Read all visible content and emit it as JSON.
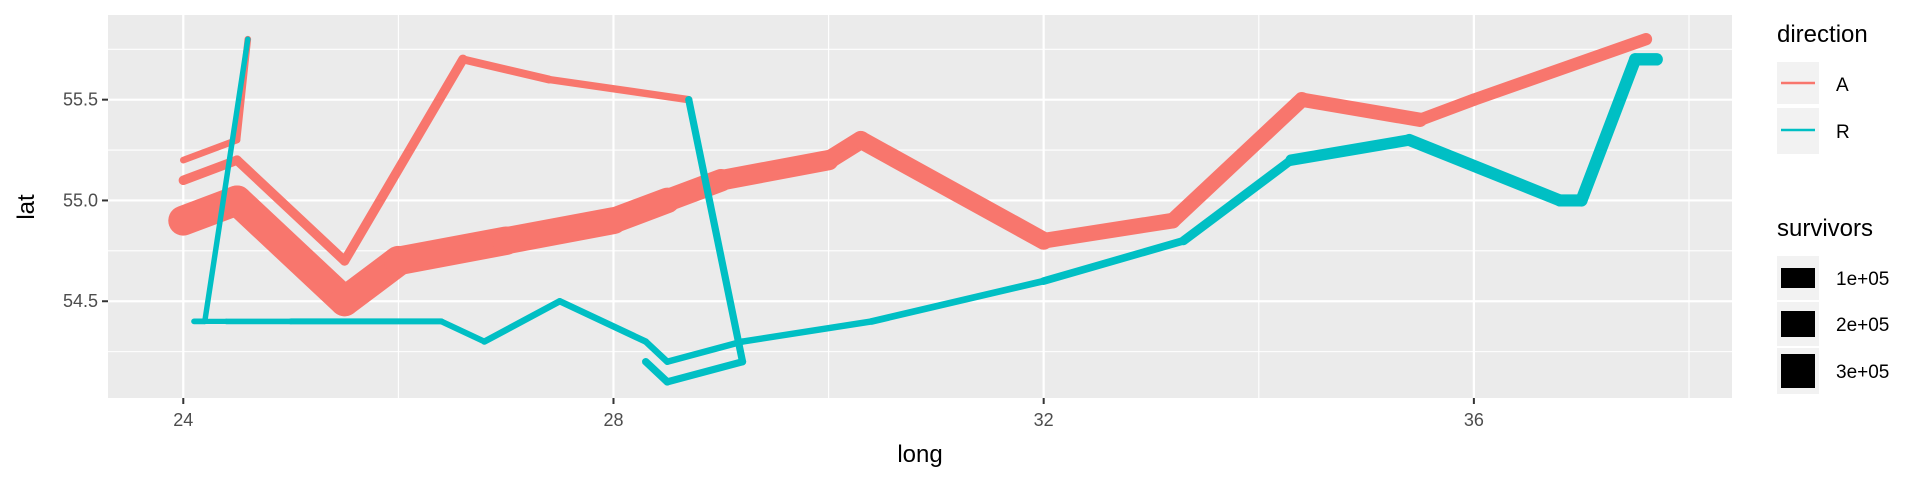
{
  "chart_data": {
    "type": "line",
    "xlabel": "long",
    "ylabel": "lat",
    "xlim": [
      23.3,
      38.4
    ],
    "ylim": [
      54.02,
      55.92
    ],
    "x_ticks": [
      24,
      28,
      32,
      36
    ],
    "x_tick_labels": [
      "24",
      "28",
      "32",
      "36"
    ],
    "y_ticks": [
      54.5,
      55.0,
      55.5
    ],
    "y_tick_labels": [
      "54.5",
      "55.0",
      "55.5"
    ],
    "grid": true,
    "legend_position": "right",
    "legends": {
      "direction": {
        "title": "direction",
        "entries": [
          {
            "label": "A",
            "color": "#F8766D"
          },
          {
            "label": "R",
            "color": "#00BFC4"
          }
        ]
      },
      "survivors": {
        "title": "survivors",
        "entries": [
          {
            "label": "1e+05",
            "value": 100000
          },
          {
            "label": "2e+05",
            "value": 200000
          },
          {
            "label": "3e+05",
            "value": 300000
          }
        ]
      }
    },
    "colors": {
      "A": "#F8766D",
      "R": "#00BFC4",
      "panel": "#EBEBEB"
    },
    "series": [
      {
        "direction": "A",
        "group": 1,
        "points": [
          {
            "long": 24.0,
            "lat": 54.9,
            "survivors": 340000
          },
          {
            "long": 24.5,
            "lat": 55.0,
            "survivors": 340000
          },
          {
            "long": 25.5,
            "lat": 54.5,
            "survivors": 340000
          },
          {
            "long": 26.0,
            "lat": 54.7,
            "survivors": 320000
          },
          {
            "long": 27.0,
            "lat": 54.8,
            "survivors": 300000
          },
          {
            "long": 28.0,
            "lat": 54.9,
            "survivors": 280000
          },
          {
            "long": 28.5,
            "lat": 55.0,
            "survivors": 240000
          },
          {
            "long": 29.0,
            "lat": 55.1,
            "survivors": 210000
          },
          {
            "long": 30.0,
            "lat": 55.2,
            "survivors": 180000
          },
          {
            "long": 30.3,
            "lat": 55.3,
            "survivors": 175000
          },
          {
            "long": 32.0,
            "lat": 54.8,
            "survivors": 145000
          },
          {
            "long": 33.2,
            "lat": 54.9,
            "survivors": 140000
          },
          {
            "long": 34.4,
            "lat": 55.5,
            "survivors": 127100
          },
          {
            "long": 35.5,
            "lat": 55.4,
            "survivors": 100000
          },
          {
            "long": 36.0,
            "lat": 55.5,
            "survivors": 100000
          },
          {
            "long": 37.6,
            "lat": 55.8,
            "survivors": 100000
          }
        ]
      },
      {
        "direction": "A",
        "group": 2,
        "points": [
          {
            "long": 24.0,
            "lat": 55.1,
            "survivors": 60000
          },
          {
            "long": 24.5,
            "lat": 55.2,
            "survivors": 60000
          },
          {
            "long": 25.5,
            "lat": 54.7,
            "survivors": 60000
          },
          {
            "long": 26.6,
            "lat": 55.7,
            "survivors": 40000
          },
          {
            "long": 27.4,
            "lat": 55.6,
            "survivors": 33000
          },
          {
            "long": 28.7,
            "lat": 55.5,
            "survivors": 33000
          }
        ]
      },
      {
        "direction": "A",
        "group": 3,
        "points": [
          {
            "long": 24.0,
            "lat": 55.2,
            "survivors": 22000
          },
          {
            "long": 24.5,
            "lat": 55.3,
            "survivors": 22000
          },
          {
            "long": 24.6,
            "lat": 55.8,
            "survivors": 6000
          }
        ]
      },
      {
        "direction": "R",
        "group": 1,
        "points": [
          {
            "long": 37.7,
            "lat": 55.7,
            "survivors": 100000
          },
          {
            "long": 37.5,
            "lat": 55.7,
            "survivors": 98000
          },
          {
            "long": 37.0,
            "lat": 55.0,
            "survivors": 97000
          },
          {
            "long": 36.8,
            "lat": 55.0,
            "survivors": 96000
          },
          {
            "long": 35.4,
            "lat": 55.3,
            "survivors": 87000
          },
          {
            "long": 34.3,
            "lat": 55.2,
            "survivors": 55000
          },
          {
            "long": 33.3,
            "lat": 54.8,
            "survivors": 37000
          },
          {
            "long": 32.0,
            "lat": 54.6,
            "survivors": 24000
          },
          {
            "long": 30.4,
            "lat": 54.4,
            "survivors": 20000
          },
          {
            "long": 29.2,
            "lat": 54.3,
            "survivors": 20000
          },
          {
            "long": 28.5,
            "lat": 54.2,
            "survivors": 20000
          },
          {
            "long": 28.3,
            "lat": 54.3,
            "survivors": 20000
          },
          {
            "long": 27.5,
            "lat": 54.5,
            "survivors": 20000
          },
          {
            "long": 26.8,
            "lat": 54.3,
            "survivors": 12000
          },
          {
            "long": 26.4,
            "lat": 54.4,
            "survivors": 14000
          },
          {
            "long": 25.0,
            "lat": 54.4,
            "survivors": 8000
          },
          {
            "long": 24.4,
            "lat": 54.4,
            "survivors": 4000
          },
          {
            "long": 24.2,
            "lat": 54.4,
            "survivors": 10000
          },
          {
            "long": 24.1,
            "lat": 54.4,
            "survivors": 10000
          }
        ]
      },
      {
        "direction": "R",
        "group": 2,
        "points": [
          {
            "long": 28.7,
            "lat": 55.5,
            "survivors": 30000
          },
          {
            "long": 29.2,
            "lat": 54.2,
            "survivors": 30000
          },
          {
            "long": 28.5,
            "lat": 54.1,
            "survivors": 33000
          },
          {
            "long": 28.3,
            "lat": 54.2,
            "survivors": 33000
          }
        ]
      },
      {
        "direction": "R",
        "group": 3,
        "points": [
          {
            "long": 24.6,
            "lat": 55.8,
            "survivors": 6000
          },
          {
            "long": 24.2,
            "lat": 54.4,
            "survivors": 6000
          }
        ]
      }
    ]
  }
}
